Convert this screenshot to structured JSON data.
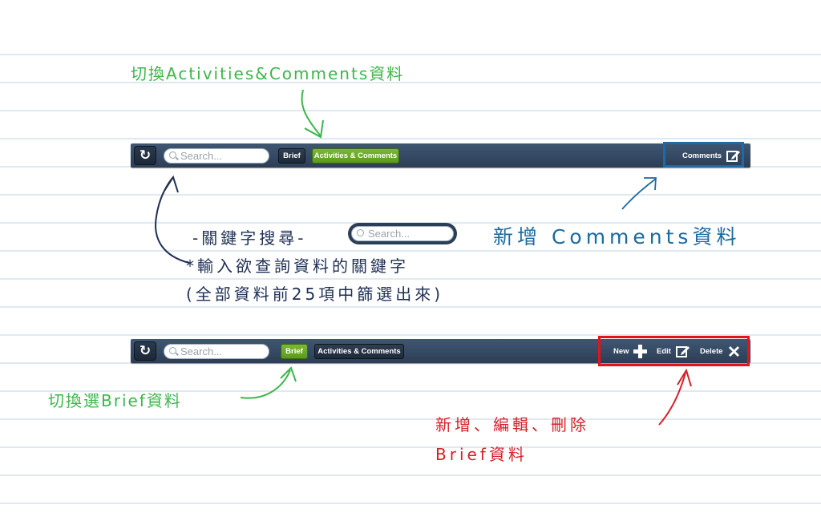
{
  "toolbar_top": {
    "refresh_icon": "refresh-icon",
    "search_placeholder": "Search...",
    "brief_label": "Brief",
    "activities_label": "Activities & Comments",
    "comments_label": "Comments"
  },
  "toolbar_bottom": {
    "search_placeholder": "Search...",
    "brief_label": "Brief",
    "activities_label": "Activities & Comments",
    "new_label": "New",
    "edit_label": "Edit",
    "delete_label": "Delete"
  },
  "annotations": {
    "switch_activities": "切換Activities&Comments資料",
    "add_comments": "新增 Comments資料",
    "keyword_search_title": "-關鍵字搜尋-",
    "keyword_search_placeholder": "Search...",
    "keyword_search_line1": "*輸入欲查詢資料的關鍵字",
    "keyword_search_line2": "(全部資料前25項中篩選出來)",
    "switch_brief": "切換選Brief資料",
    "brief_actions_line1": "新增、編輯、刪除",
    "brief_actions_line2": "Brief資料"
  },
  "colors": {
    "toolbar": "#34495f",
    "active_segment": "#6aab28",
    "annotation_green": "#3cb64b",
    "annotation_blue": "#1a6aa0",
    "annotation_red": "#d5202a",
    "annotation_navy": "#1e2f55"
  }
}
